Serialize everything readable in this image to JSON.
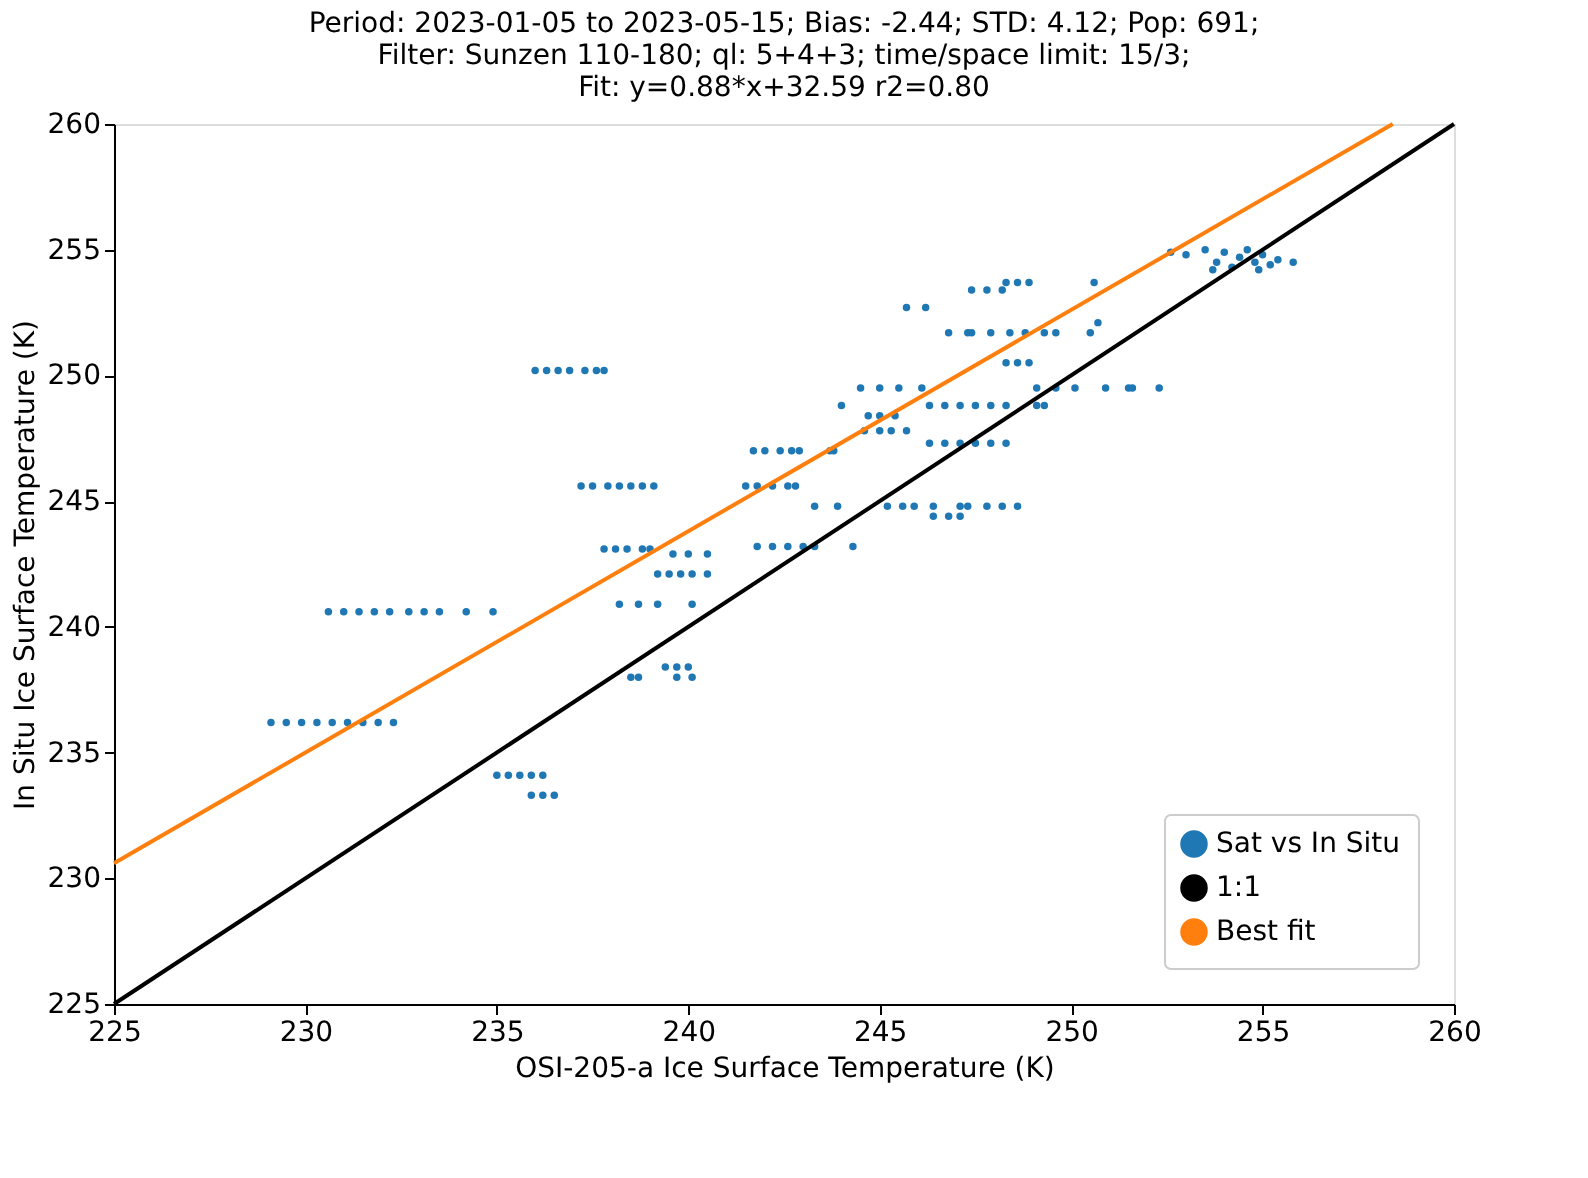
{
  "chart_data": {
    "type": "scatter",
    "title": [
      "Period: 2023-01-05 to 2023-05-15; Bias: -2.44; STD: 4.12; Pop: 691;",
      "Filter: Sunzen 110-180; ql: 5+4+3; time/space limit: 15/3;",
      "Fit: y=0.88*x+32.59   r2=0.80"
    ],
    "xlabel": "OSI-205-a Ice Surface Temperature (K)",
    "ylabel": "In Situ Ice Surface Temperature (K)",
    "xlim": [
      225,
      260
    ],
    "ylim": [
      225,
      260
    ],
    "xticks": [
      225,
      230,
      235,
      240,
      245,
      250,
      255,
      260
    ],
    "yticks": [
      225,
      230,
      235,
      240,
      245,
      250,
      255,
      260
    ],
    "grid": false,
    "legend": "bottom right",
    "series": [
      {
        "name": "Sat vs In Situ",
        "marker": "circle",
        "color": "#1f77b4",
        "x": [
          229.1,
          229.5,
          229.9,
          230.3,
          230.7,
          231.1,
          231.5,
          231.9,
          232.3,
          230.6,
          231.0,
          231.4,
          231.8,
          232.2,
          232.7,
          233.1,
          233.5,
          234.2,
          234.9,
          236.0,
          236.3,
          236.6,
          236.9,
          237.3,
          237.6,
          237.8,
          235.0,
          235.3,
          235.6,
          235.9,
          236.2,
          235.9,
          236.2,
          236.5,
          237.2,
          237.5,
          237.9,
          238.2,
          238.5,
          238.8,
          239.1,
          237.8,
          238.1,
          238.4,
          238.8,
          239.0,
          239.6,
          240.0,
          240.5,
          239.2,
          239.5,
          239.8,
          240.1,
          240.5,
          238.2,
          238.7,
          239.2,
          240.1,
          239.4,
          239.7,
          240.0,
          238.5,
          238.7,
          239.7,
          240.1,
          241.7,
          242.0,
          242.4,
          242.7,
          242.9,
          243.7,
          243.8,
          241.5,
          241.8,
          242.2,
          242.6,
          242.8,
          241.8,
          242.2,
          242.6,
          243.0,
          243.3,
          244.3,
          243.3,
          243.9,
          245.2,
          245.6,
          245.9,
          246.4,
          247.1,
          247.3,
          247.8,
          248.2,
          248.6,
          246.4,
          246.8,
          247.1,
          246.3,
          246.7,
          247.1,
          247.5,
          247.9,
          248.3,
          244.6,
          245.0,
          245.3,
          245.7,
          244.7,
          245.0,
          245.4,
          244.0,
          246.3,
          246.7,
          247.1,
          247.5,
          247.9,
          248.3,
          249.1,
          249.3,
          244.5,
          245.0,
          245.5,
          246.1,
          249.1,
          249.6,
          250.1,
          250.9,
          251.5,
          251.6,
          252.3,
          248.3,
          248.6,
          248.9,
          246.8,
          247.3,
          247.4,
          247.9,
          248.4,
          248.8,
          249.3,
          249.6,
          250.5,
          245.7,
          246.2,
          247.4,
          247.8,
          248.2,
          248.3,
          248.6,
          248.9,
          250.6,
          250.7,
          252.6,
          253.0,
          253.5,
          253.8,
          254.0,
          254.2,
          254.4,
          254.6,
          254.8,
          255.0,
          255.2,
          255.4,
          255.8,
          253.7,
          254.9
        ],
        "values": [
          236.2,
          236.2,
          236.2,
          236.2,
          236.2,
          236.2,
          236.2,
          236.2,
          236.2,
          240.6,
          240.6,
          240.6,
          240.6,
          240.6,
          240.6,
          240.6,
          240.6,
          240.6,
          240.6,
          250.2,
          250.2,
          250.2,
          250.2,
          250.2,
          250.2,
          250.2,
          234.1,
          234.1,
          234.1,
          234.1,
          234.1,
          233.3,
          233.3,
          233.3,
          245.6,
          245.6,
          245.6,
          245.6,
          245.6,
          245.6,
          245.6,
          243.1,
          243.1,
          243.1,
          243.1,
          243.1,
          242.9,
          242.9,
          242.9,
          242.1,
          242.1,
          242.1,
          242.1,
          242.1,
          240.9,
          240.9,
          240.9,
          240.9,
          238.4,
          238.4,
          238.4,
          238.0,
          238.0,
          238.0,
          238.0,
          247.0,
          247.0,
          247.0,
          247.0,
          247.0,
          247.0,
          247.0,
          245.6,
          245.6,
          245.6,
          245.6,
          245.6,
          243.2,
          243.2,
          243.2,
          243.2,
          243.2,
          243.2,
          244.8,
          244.8,
          244.8,
          244.8,
          244.8,
          244.8,
          244.8,
          244.8,
          244.8,
          244.8,
          244.8,
          244.4,
          244.4,
          244.4,
          247.3,
          247.3,
          247.3,
          247.3,
          247.3,
          247.3,
          247.8,
          247.8,
          247.8,
          247.8,
          248.4,
          248.4,
          248.4,
          248.8,
          248.8,
          248.8,
          248.8,
          248.8,
          248.8,
          248.8,
          248.8,
          248.8,
          249.5,
          249.5,
          249.5,
          249.5,
          249.5,
          249.5,
          249.5,
          249.5,
          249.5,
          249.5,
          249.5,
          250.5,
          250.5,
          250.5,
          251.7,
          251.7,
          251.7,
          251.7,
          251.7,
          251.7,
          251.7,
          251.7,
          251.7,
          252.7,
          252.7,
          253.4,
          253.4,
          253.4,
          253.7,
          253.7,
          253.7,
          253.7,
          252.1,
          254.9,
          254.8,
          255.0,
          254.5,
          254.9,
          254.3,
          254.7,
          255.0,
          254.5,
          254.8,
          254.4,
          254.6,
          254.5,
          254.2,
          254.2
        ]
      },
      {
        "name": "1:1",
        "type": "line",
        "color": "#000000",
        "x": [
          225,
          260
        ],
        "values": [
          225,
          260
        ]
      },
      {
        "name": "Best fit",
        "type": "line",
        "color": "#ff7f0e",
        "x": [
          225,
          258.4
        ],
        "values": [
          230.6,
          260
        ]
      }
    ]
  }
}
